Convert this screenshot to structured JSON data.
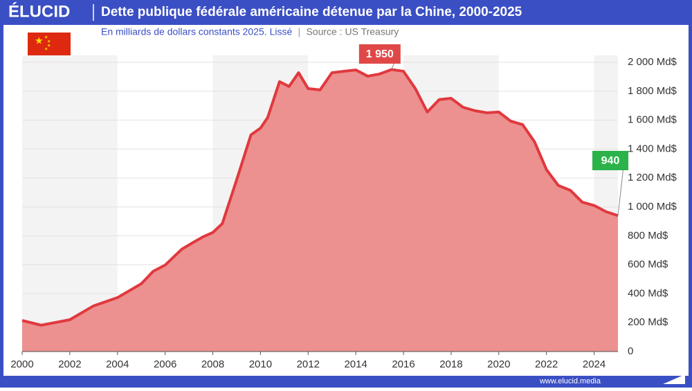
{
  "header": {
    "logo": "ÉLUCID"
  },
  "footer": {
    "url": "www.elucid.media"
  },
  "chart_data": {
    "type": "area",
    "title": "Dette publique fédérale américaine détenue par la Chine, 2000-2025",
    "subtitle": "En milliards de dollars constants 2025. Lissé",
    "source": "Source : US Treasury",
    "x": [
      2000,
      2000.8,
      2002,
      2003,
      2004,
      2005,
      2005.5,
      2006,
      2006.7,
      2007.3,
      2007.6,
      2008,
      2008.4,
      2009,
      2009.6,
      2010,
      2010.3,
      2010.8,
      2011.2,
      2011.6,
      2012,
      2012.5,
      2013,
      2013.5,
      2014,
      2014.5,
      2015,
      2015.5,
      2016,
      2016.5,
      2017,
      2017.5,
      2018,
      2018.5,
      2019,
      2019.5,
      2020,
      2020.5,
      2021,
      2021.5,
      2022,
      2022.5,
      2023,
      2023.5,
      2024,
      2024.5,
      2025
    ],
    "values": [
      215,
      182,
      220,
      316,
      373,
      469,
      555,
      598,
      708,
      766,
      794,
      823,
      885,
      1187,
      1498,
      1545,
      1617,
      1866,
      1833,
      1928,
      1818,
      1809,
      1928,
      1938,
      1947,
      1904,
      1919,
      1950,
      1938,
      1818,
      1656,
      1742,
      1751,
      1689,
      1665,
      1651,
      1656,
      1593,
      1569,
      1450,
      1258,
      1148,
      1115,
      1033,
      1010,
      967,
      940
    ],
    "line_color": "#e0393e",
    "fill_color": "#ec9090",
    "xlim": [
      2000,
      2025
    ],
    "ylim": [
      0,
      2000
    ],
    "xticks": [
      2000,
      2002,
      2004,
      2006,
      2008,
      2010,
      2012,
      2014,
      2016,
      2018,
      2020,
      2022,
      2024
    ],
    "yticks": [
      0,
      {
        "value": 200,
        "label": "200 Md$"
      },
      {
        "value": 400,
        "label": "400 Md$"
      },
      {
        "value": 600,
        "label": "600 Md$"
      },
      {
        "value": 800,
        "label": "800 Md$"
      },
      {
        "value": 1000,
        "label": "1 000 Md$"
      },
      {
        "value": 1200,
        "label": "1 200 Md$"
      },
      {
        "value": 1400,
        "label": "1 400 Md$"
      },
      {
        "value": 1600,
        "label": "1 600 Md$"
      },
      {
        "value": 1800,
        "label": "1 800 Md$"
      },
      {
        "value": 2000,
        "label": "2 000 Md$"
      }
    ],
    "grid": true,
    "annotations": [
      {
        "label": "1 950",
        "x": 2015.5,
        "value": 1950,
        "color": "#e04848"
      },
      {
        "label": "940",
        "x": 2025,
        "value": 940,
        "color": "#2bb34a"
      }
    ]
  }
}
